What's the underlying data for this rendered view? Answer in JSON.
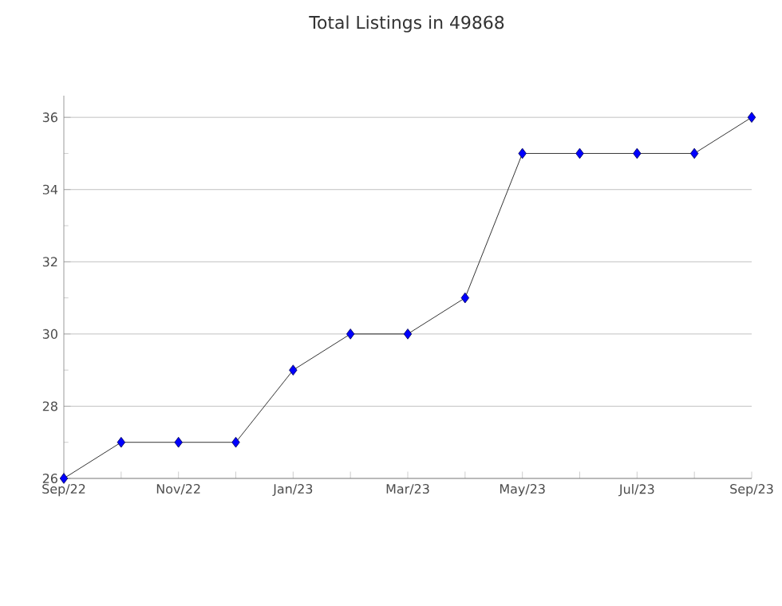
{
  "chart_data": {
    "type": "line",
    "title": "Total Listings in 49868",
    "categories": [
      "Sep/22",
      null,
      "Nov/22",
      null,
      "Jan/23",
      null,
      "Mar/23",
      null,
      "May/23",
      null,
      "Jul/23",
      null,
      "Sep/23"
    ],
    "values": [
      26,
      27,
      27,
      27,
      29,
      30,
      30,
      31,
      35,
      35,
      35,
      35,
      36
    ],
    "color": "#0000ff",
    "marker": "diamond",
    "line_style": "solid",
    "ylim": [
      26,
      36.6
    ],
    "yticks": [
      26,
      28,
      30,
      32,
      34,
      36
    ],
    "grid": "y"
  }
}
